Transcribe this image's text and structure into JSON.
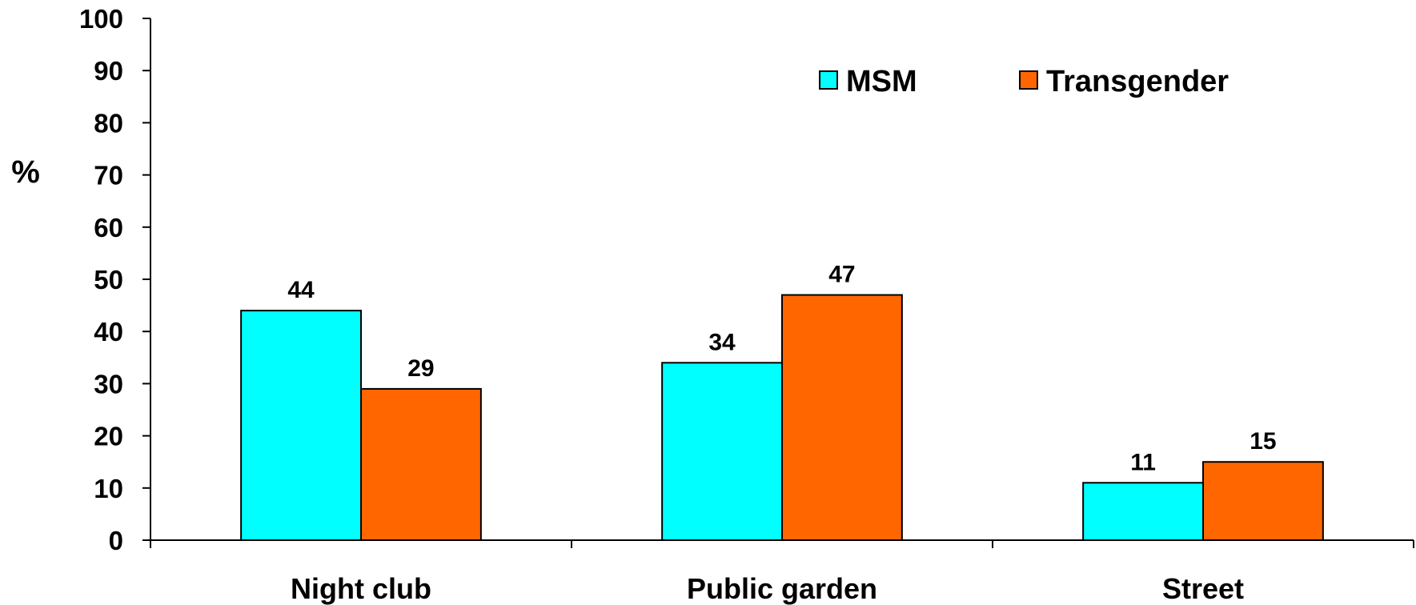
{
  "chart_data": {
    "type": "bar",
    "ylabel": "%",
    "ylim": [
      0,
      100
    ],
    "yticks": [
      0,
      10,
      20,
      30,
      40,
      50,
      60,
      70,
      80,
      90,
      100
    ],
    "categories": [
      "Night club",
      "Public garden",
      "Street"
    ],
    "series": [
      {
        "name": "MSM",
        "color": "#00FFFF",
        "values": [
          44,
          34,
          11
        ]
      },
      {
        "name": "Transgender",
        "color": "#FF6600",
        "values": [
          29,
          47,
          15
        ]
      }
    ],
    "grid": false,
    "legend_position": "top-right",
    "data_labels": true
  }
}
